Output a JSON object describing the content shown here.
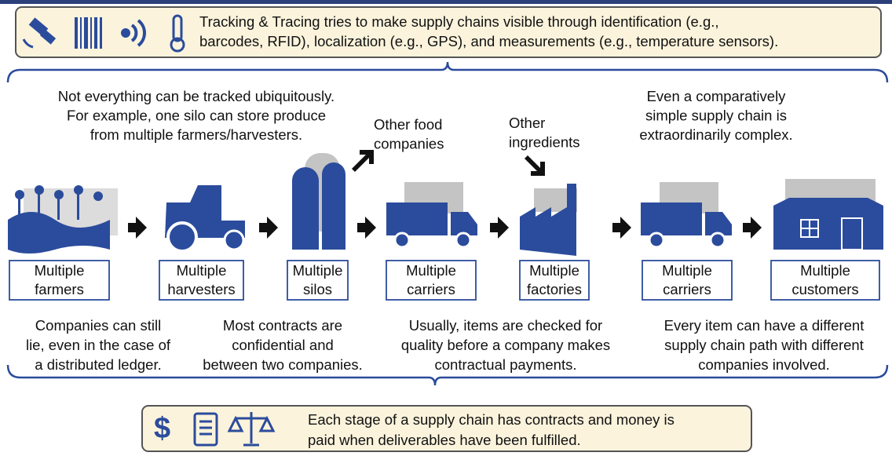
{
  "top_banner": {
    "lines": [
      "Tracking & Tracing tries to make supply chains visible through identification (e.g.,",
      "barcodes, RFID), localization (e.g., GPS), and measurements (e.g., temperature sensors)."
    ]
  },
  "upper_notes": [
    {
      "lines": [
        "Not everything can be tracked ubiquitously.",
        "For example, one silo can store produce",
        "from multiple farmers/harvesters."
      ]
    },
    {
      "lines": [
        "Other food",
        "companies"
      ]
    },
    {
      "lines": [
        "Other",
        "ingredients"
      ]
    },
    {
      "lines": [
        "Even a comparatively",
        "simple supply chain is",
        "extraordinarily complex."
      ]
    }
  ],
  "stages": [
    {
      "lines": [
        "Multiple",
        "farmers"
      ]
    },
    {
      "lines": [
        "Multiple",
        "harvesters"
      ]
    },
    {
      "lines": [
        "Multiple",
        "silos"
      ]
    },
    {
      "lines": [
        "Multiple",
        "carriers"
      ]
    },
    {
      "lines": [
        "Multiple",
        "factories"
      ]
    },
    {
      "lines": [
        "Multiple",
        "carriers"
      ]
    },
    {
      "lines": [
        "Multiple",
        "customers"
      ]
    }
  ],
  "lower_notes": [
    {
      "lines": [
        "Companies can still",
        "lie, even in the case of",
        "a distributed ledger."
      ]
    },
    {
      "lines": [
        "Most contracts are",
        "confidential and",
        "between two companies."
      ]
    },
    {
      "lines": [
        "Usually, items are checked for",
        "quality before a company makes",
        "contractual payments."
      ]
    },
    {
      "lines": [
        "Every item can have a different",
        "supply chain path with different",
        "companies involved."
      ]
    }
  ],
  "bottom_banner": {
    "lines": [
      "Each stage of a supply chain has contracts and money is",
      "paid when deliverables have been fulfilled."
    ]
  }
}
